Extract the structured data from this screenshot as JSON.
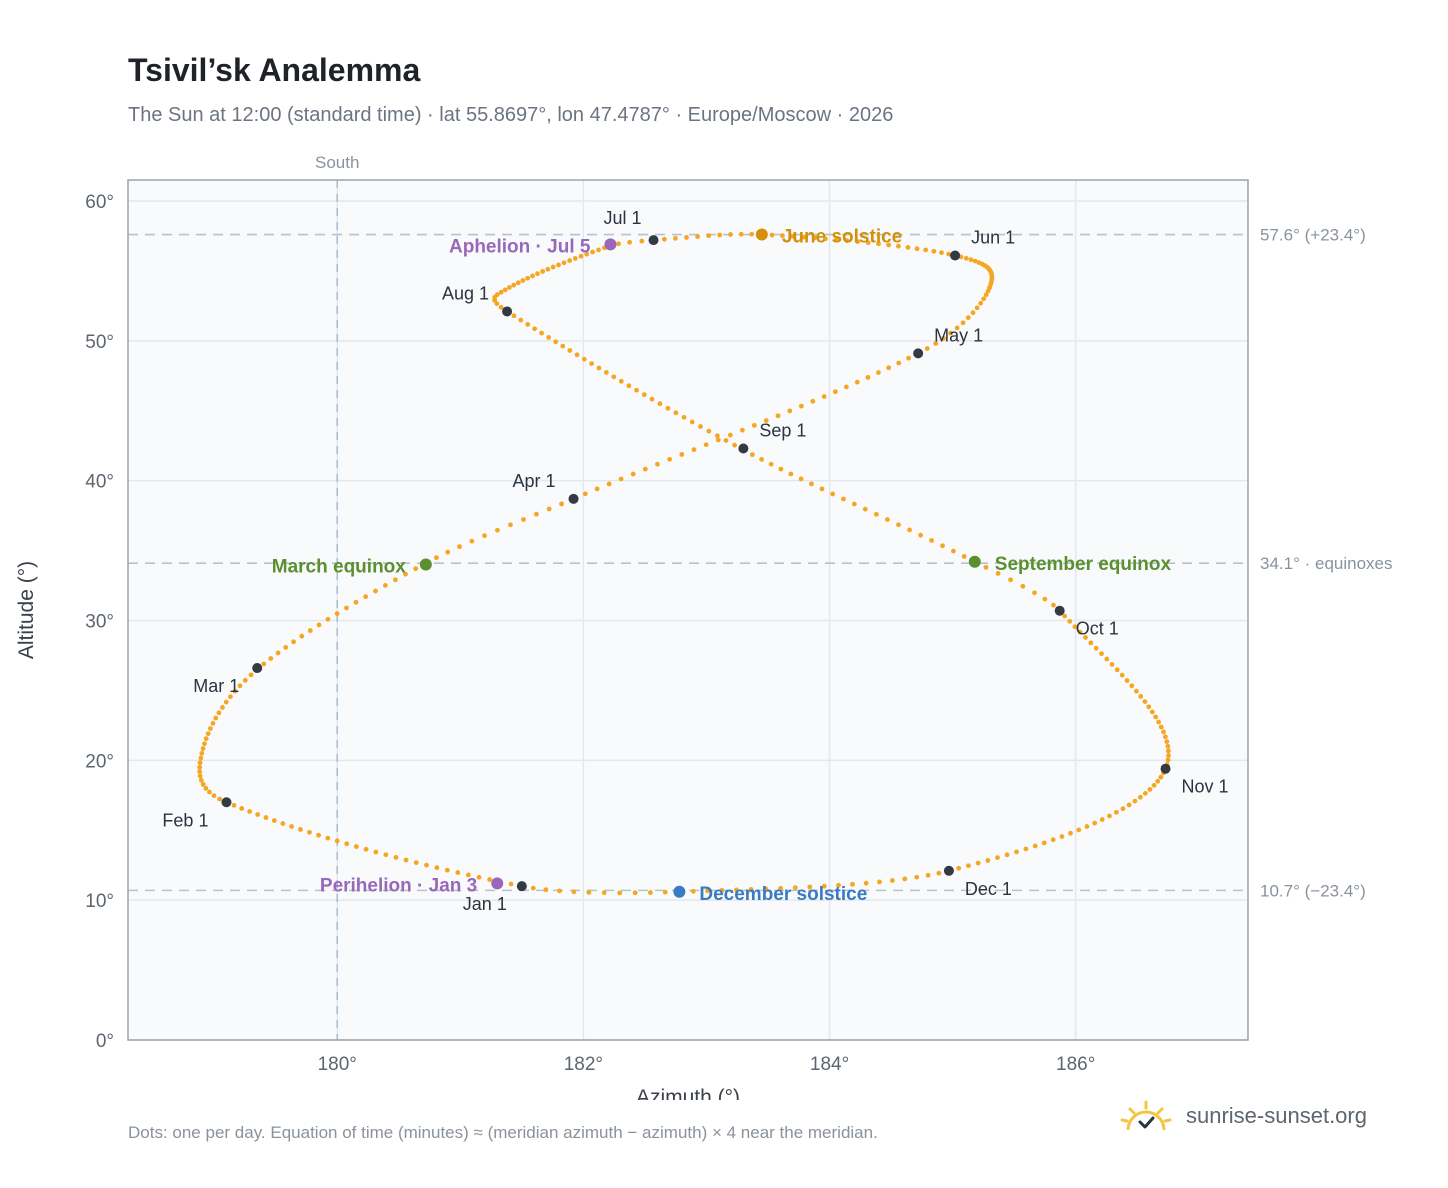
{
  "header": {
    "title": "Tsivil’sk Analemma",
    "subtitle": "The Sun at 12:00 (standard time) · lat 55.8697°, lon 47.4787° · Europe/Moscow · 2026"
  },
  "footer": {
    "note": "Dots: one per day. Equation of time (minutes) ≈ (meridian azimuth − azimuth) × 4 near the meridian.",
    "brand": "sunrise-sunset.org"
  },
  "colors": {
    "path": "#f5a623",
    "month_dot": "#333a44",
    "june_solstice": "#d4900a",
    "december_solstice": "#3a7ac0",
    "equinox": "#5a9030",
    "apsis": "#9a68b8",
    "reference_line": "#b8c2cc",
    "plot_bg": "#f8fafc",
    "grid": "#e3e8ee"
  },
  "icons": {
    "brand": "sun-icon"
  },
  "chart_data": {
    "type": "scatter",
    "xlabel": "Azimuth (°)",
    "ylabel": "Altitude (°)",
    "xlim": [
      178.3,
      187.4
    ],
    "ylim": [
      0,
      61.5
    ],
    "xticks": [
      180,
      182,
      184,
      186
    ],
    "yticks": [
      0,
      10,
      20,
      30,
      40,
      50,
      60
    ],
    "x_tick_labels": [
      "180°",
      "182°",
      "184°",
      "186°"
    ],
    "y_tick_labels": [
      "0°",
      "10°",
      "20°",
      "30°",
      "40°",
      "50°",
      "60°"
    ],
    "grid": true,
    "meridian": {
      "x": 180,
      "label": "South"
    },
    "reference_lines": [
      {
        "y": 57.6,
        "label": "57.6° (+23.4°)"
      },
      {
        "y": 34.1,
        "label": "34.1° · equinoxes"
      },
      {
        "y": 10.7,
        "label": "10.7° (−23.4°)"
      }
    ],
    "path_anchors": [
      {
        "doy": 1,
        "x": 181.5,
        "y": 11.0
      },
      {
        "doy": 32,
        "x": 179.1,
        "y": 17.0
      },
      {
        "doy": 44,
        "x": 178.9,
        "y": 20.5
      },
      {
        "doy": 60,
        "x": 179.35,
        "y": 26.5
      },
      {
        "doy": 79,
        "x": 180.72,
        "y": 34.1
      },
      {
        "doy": 91,
        "x": 181.92,
        "y": 38.7
      },
      {
        "doy": 121,
        "x": 184.72,
        "y": 49.1
      },
      {
        "doy": 135,
        "x": 185.3,
        "y": 53.8
      },
      {
        "doy": 152,
        "x": 185.02,
        "y": 56.1
      },
      {
        "doy": 172,
        "x": 183.45,
        "y": 57.6
      },
      {
        "doy": 182,
        "x": 182.57,
        "y": 57.2
      },
      {
        "doy": 186,
        "x": 182.22,
        "y": 56.8
      },
      {
        "doy": 208,
        "x": 181.3,
        "y": 53.3
      },
      {
        "doy": 213,
        "x": 181.38,
        "y": 52.1
      },
      {
        "doy": 244,
        "x": 183.3,
        "y": 42.2
      },
      {
        "doy": 266,
        "x": 185.18,
        "y": 34.2
      },
      {
        "doy": 274,
        "x": 185.87,
        "y": 30.7
      },
      {
        "doy": 305,
        "x": 186.73,
        "y": 19.4
      },
      {
        "doy": 335,
        "x": 184.97,
        "y": 12.1
      },
      {
        "doy": 355,
        "x": 182.78,
        "y": 10.6
      },
      {
        "doy": 366,
        "x": 181.5,
        "y": 11.0
      }
    ],
    "month_points": [
      {
        "label": "Jan 1",
        "x": 181.5,
        "y": 11.0
      },
      {
        "label": "Feb 1",
        "x": 179.1,
        "y": 17.0
      },
      {
        "label": "Mar 1",
        "x": 179.35,
        "y": 26.6
      },
      {
        "label": "Apr 1",
        "x": 181.92,
        "y": 38.7
      },
      {
        "label": "May 1",
        "x": 184.72,
        "y": 49.1
      },
      {
        "label": "Jun 1",
        "x": 185.02,
        "y": 56.1
      },
      {
        "label": "Jul 1",
        "x": 182.57,
        "y": 57.2
      },
      {
        "label": "Aug 1",
        "x": 181.38,
        "y": 52.1
      },
      {
        "label": "Sep 1",
        "x": 183.3,
        "y": 42.3
      },
      {
        "label": "Oct 1",
        "x": 185.87,
        "y": 30.7
      },
      {
        "label": "Nov 1",
        "x": 186.73,
        "y": 19.4
      },
      {
        "label": "Dec 1",
        "x": 184.97,
        "y": 12.1
      }
    ],
    "events": [
      {
        "label": "June solstice",
        "x": 183.45,
        "y": 57.6,
        "kind": "june"
      },
      {
        "label": "December solstice",
        "x": 182.78,
        "y": 10.6,
        "kind": "december"
      },
      {
        "label": "March equinox",
        "x": 180.72,
        "y": 34.0,
        "kind": "equinox"
      },
      {
        "label": "September equinox",
        "x": 185.18,
        "y": 34.2,
        "kind": "equinox"
      },
      {
        "label": "Aphelion · Jul 5",
        "x": 182.22,
        "y": 56.9,
        "kind": "apsis"
      },
      {
        "label": "Perihelion · Jan 3",
        "x": 181.3,
        "y": 11.2,
        "kind": "apsis"
      }
    ]
  }
}
